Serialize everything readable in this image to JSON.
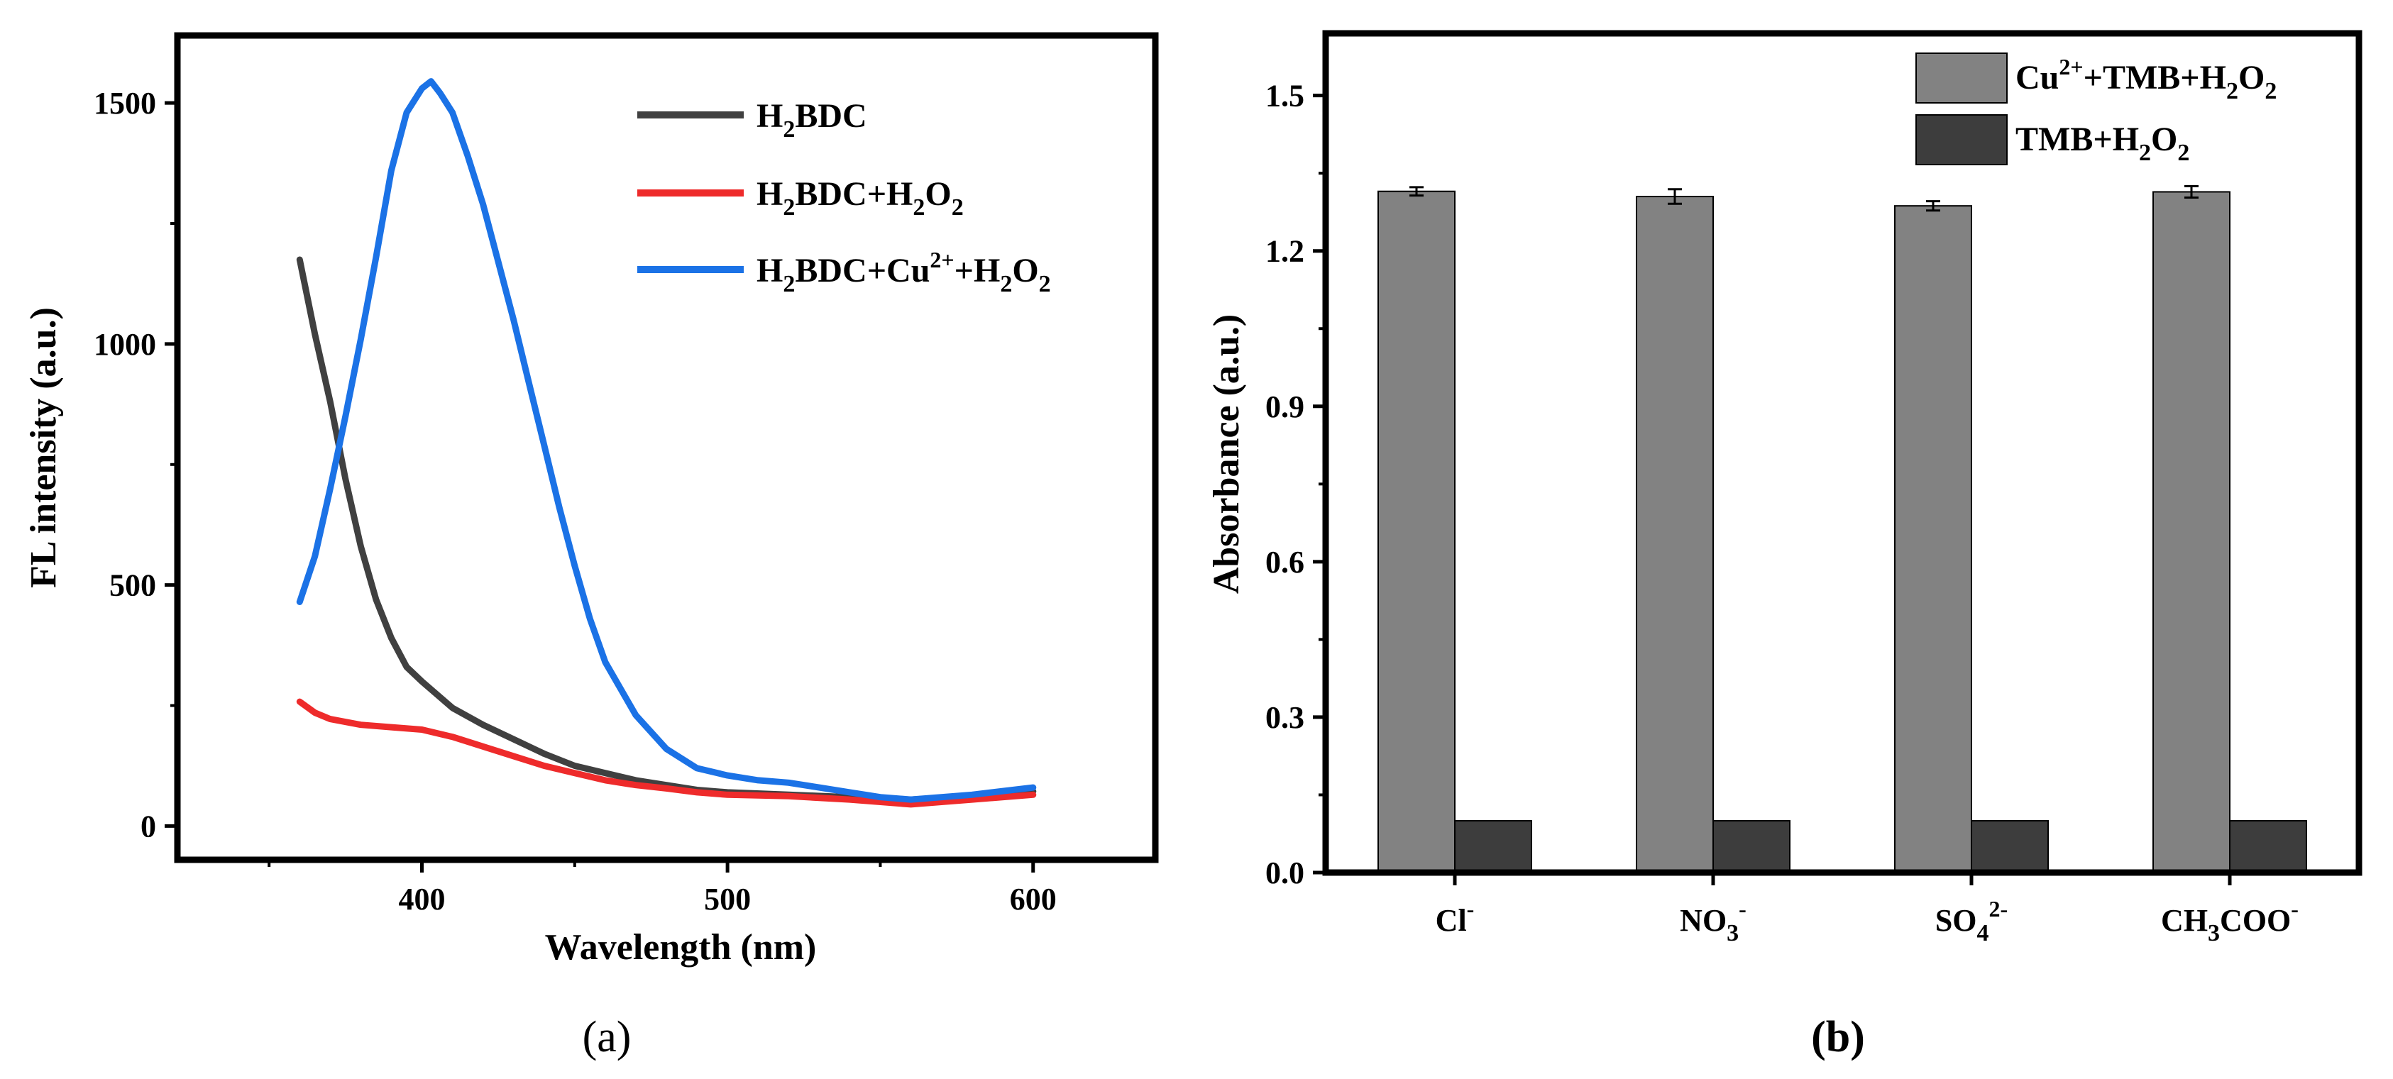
{
  "chart_data": [
    {
      "panel_label": "(a)",
      "type": "line",
      "xlabel": "Wavelength (nm)",
      "ylabel": "FL intensity (a.u.)",
      "xlim": [
        320,
        640
      ],
      "ylim": [
        -70,
        1640
      ],
      "xticks": [
        400,
        500,
        600
      ],
      "yticks": [
        0,
        500,
        1000,
        1500
      ],
      "legend_position": "top-right",
      "series": [
        {
          "name": "H2BDC",
          "legend_parts": [
            [
              "H",
              ""
            ],
            [
              "2",
              "sub"
            ],
            [
              "BDC",
              ""
            ]
          ],
          "color": "#404040",
          "x": [
            360,
            365,
            370,
            375,
            380,
            385,
            390,
            395,
            400,
            410,
            420,
            430,
            440,
            450,
            460,
            470,
            480,
            490,
            500,
            520,
            540,
            560,
            580,
            600
          ],
          "y": [
            1175,
            1020,
            880,
            720,
            580,
            470,
            390,
            330,
            300,
            245,
            210,
            180,
            150,
            125,
            110,
            95,
            85,
            75,
            70,
            65,
            60,
            55,
            62,
            72
          ]
        },
        {
          "name": "H2BDC+H2O2",
          "legend_parts": [
            [
              "H",
              ""
            ],
            [
              "2",
              "sub"
            ],
            [
              "BDC+H",
              ""
            ],
            [
              "2",
              "sub"
            ],
            [
              "O",
              ""
            ],
            [
              "2",
              "sub"
            ]
          ],
          "color": "#ee2b2b",
          "x": [
            360,
            365,
            370,
            380,
            390,
            400,
            410,
            420,
            430,
            440,
            450,
            460,
            470,
            480,
            490,
            500,
            520,
            540,
            560,
            580,
            600
          ],
          "y": [
            258,
            235,
            222,
            210,
            205,
            200,
            185,
            165,
            145,
            125,
            110,
            95,
            85,
            78,
            70,
            65,
            62,
            55,
            45,
            55,
            65
          ]
        },
        {
          "name": "H2BDC+Cu2++H2O2",
          "legend_parts": [
            [
              "H",
              ""
            ],
            [
              "2",
              "sub"
            ],
            [
              "BDC+Cu",
              ""
            ],
            [
              "2+",
              "sup"
            ],
            [
              "+H",
              ""
            ],
            [
              "2",
              "sub"
            ],
            [
              "O",
              ""
            ],
            [
              "2",
              "sub"
            ]
          ],
          "color": "#1b72e6",
          "x": [
            360,
            365,
            370,
            375,
            380,
            385,
            390,
            395,
            400,
            403,
            406,
            410,
            415,
            420,
            425,
            430,
            435,
            440,
            445,
            450,
            455,
            460,
            470,
            480,
            490,
            500,
            510,
            520,
            530,
            540,
            550,
            560,
            580,
            600
          ],
          "y": [
            465,
            560,
            700,
            850,
            1010,
            1180,
            1360,
            1480,
            1530,
            1545,
            1520,
            1480,
            1390,
            1290,
            1170,
            1050,
            920,
            790,
            660,
            540,
            430,
            340,
            230,
            160,
            120,
            105,
            95,
            90,
            80,
            70,
            60,
            55,
            65,
            80
          ]
        }
      ]
    },
    {
      "panel_label": "(b)",
      "type": "bar",
      "xlabel": "",
      "ylabel": "Absorbance (a.u.)",
      "ylim": [
        0,
        1.62
      ],
      "yticks": [
        "0.0",
        "0.3",
        "0.6",
        "0.9",
        "1.2",
        "1.5"
      ],
      "legend_position": "top-right",
      "categories": [
        [
          [
            "Cl",
            ""
          ],
          [
            "-",
            "sup"
          ]
        ],
        [
          [
            "NO",
            ""
          ],
          [
            "3",
            "sub"
          ],
          [
            "-",
            "sup"
          ]
        ],
        [
          [
            "SO",
            ""
          ],
          [
            "4",
            "sub"
          ],
          [
            "2-",
            "sup"
          ]
        ],
        [
          [
            "CH",
            ""
          ],
          [
            "3",
            "sub"
          ],
          [
            "COO",
            ""
          ],
          [
            "-",
            "sup"
          ]
        ]
      ],
      "series": [
        {
          "name": "Cu2++TMB+H2O2",
          "legend_parts": [
            [
              "Cu",
              ""
            ],
            [
              "2+",
              "sup"
            ],
            [
              "+TMB+H",
              ""
            ],
            [
              "2",
              "sub"
            ],
            [
              "O",
              ""
            ],
            [
              "2",
              "sub"
            ]
          ],
          "color": "#828282",
          "values": [
            1.315,
            1.305,
            1.287,
            1.314
          ],
          "errors": [
            0.008,
            0.014,
            0.009,
            0.011
          ]
        },
        {
          "name": "TMB+H2O2",
          "legend_parts": [
            [
              "TMB+H",
              ""
            ],
            [
              "2",
              "sub"
            ],
            [
              "O",
              ""
            ],
            [
              "2",
              "sub"
            ]
          ],
          "color": "#3d3d3d",
          "values": [
            0.1,
            0.1,
            0.1,
            0.1
          ],
          "errors": [
            0,
            0,
            0,
            0
          ]
        }
      ]
    }
  ]
}
